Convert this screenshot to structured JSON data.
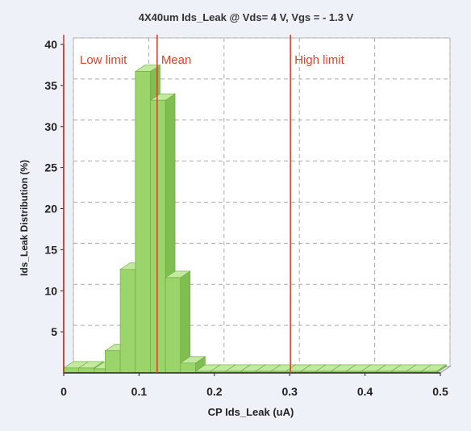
{
  "chart_data": {
    "type": "bar",
    "title": "4X40um Ids_Leak @ Vds= 4 V, Vgs = - 1.3 V",
    "xlabel": "CP Ids_Leak (uA)",
    "ylabel": "Ids_Leak Distribution (%)",
    "xlim": [
      0,
      0.5
    ],
    "ylim": [
      0,
      40
    ],
    "xticks": [
      "0",
      "0.1",
      "0.2",
      "0.3",
      "0.4",
      "0.5"
    ],
    "yticks": [
      "5",
      "10",
      "15",
      "20",
      "25",
      "30",
      "35",
      "40"
    ],
    "grid": true,
    "bar_style": "3d",
    "bar_color": "#9bd46a",
    "bins": [
      {
        "start": 0.0,
        "end": 0.02,
        "value": 0.6
      },
      {
        "start": 0.02,
        "end": 0.04,
        "value": 0.6
      },
      {
        "start": 0.04,
        "end": 0.055,
        "value": 0.5
      },
      {
        "start": 0.055,
        "end": 0.075,
        "value": 2.7
      },
      {
        "start": 0.075,
        "end": 0.095,
        "value": 12.6
      },
      {
        "start": 0.095,
        "end": 0.115,
        "value": 36.7
      },
      {
        "start": 0.115,
        "end": 0.135,
        "value": 33.2
      },
      {
        "start": 0.135,
        "end": 0.155,
        "value": 11.6
      },
      {
        "start": 0.155,
        "end": 0.175,
        "value": 1.2
      },
      {
        "start": 0.175,
        "end": 0.195,
        "value": 0.2
      },
      {
        "start": 0.195,
        "end": 0.215,
        "value": 0.2
      },
      {
        "start": 0.215,
        "end": 0.235,
        "value": 0.2
      },
      {
        "start": 0.235,
        "end": 0.255,
        "value": 0.2
      },
      {
        "start": 0.255,
        "end": 0.275,
        "value": 0.2
      },
      {
        "start": 0.275,
        "end": 0.295,
        "value": 0.2
      },
      {
        "start": 0.295,
        "end": 0.315,
        "value": 0.2
      },
      {
        "start": 0.315,
        "end": 0.335,
        "value": 0.2
      },
      {
        "start": 0.335,
        "end": 0.355,
        "value": 0.2
      },
      {
        "start": 0.355,
        "end": 0.375,
        "value": 0.2
      },
      {
        "start": 0.375,
        "end": 0.395,
        "value": 0.2
      },
      {
        "start": 0.395,
        "end": 0.415,
        "value": 0.2
      },
      {
        "start": 0.415,
        "end": 0.435,
        "value": 0.2
      },
      {
        "start": 0.435,
        "end": 0.455,
        "value": 0.2
      },
      {
        "start": 0.455,
        "end": 0.475,
        "value": 0.2
      },
      {
        "start": 0.475,
        "end": 0.495,
        "value": 0.2
      }
    ],
    "reference_lines": [
      {
        "label": "Low limit",
        "x": 0.0,
        "color": "#d9442b"
      },
      {
        "label": "Mean",
        "x": 0.124,
        "color": "#d9442b"
      },
      {
        "label": "High limit",
        "x": 0.301,
        "color": "#d9442b"
      }
    ]
  }
}
